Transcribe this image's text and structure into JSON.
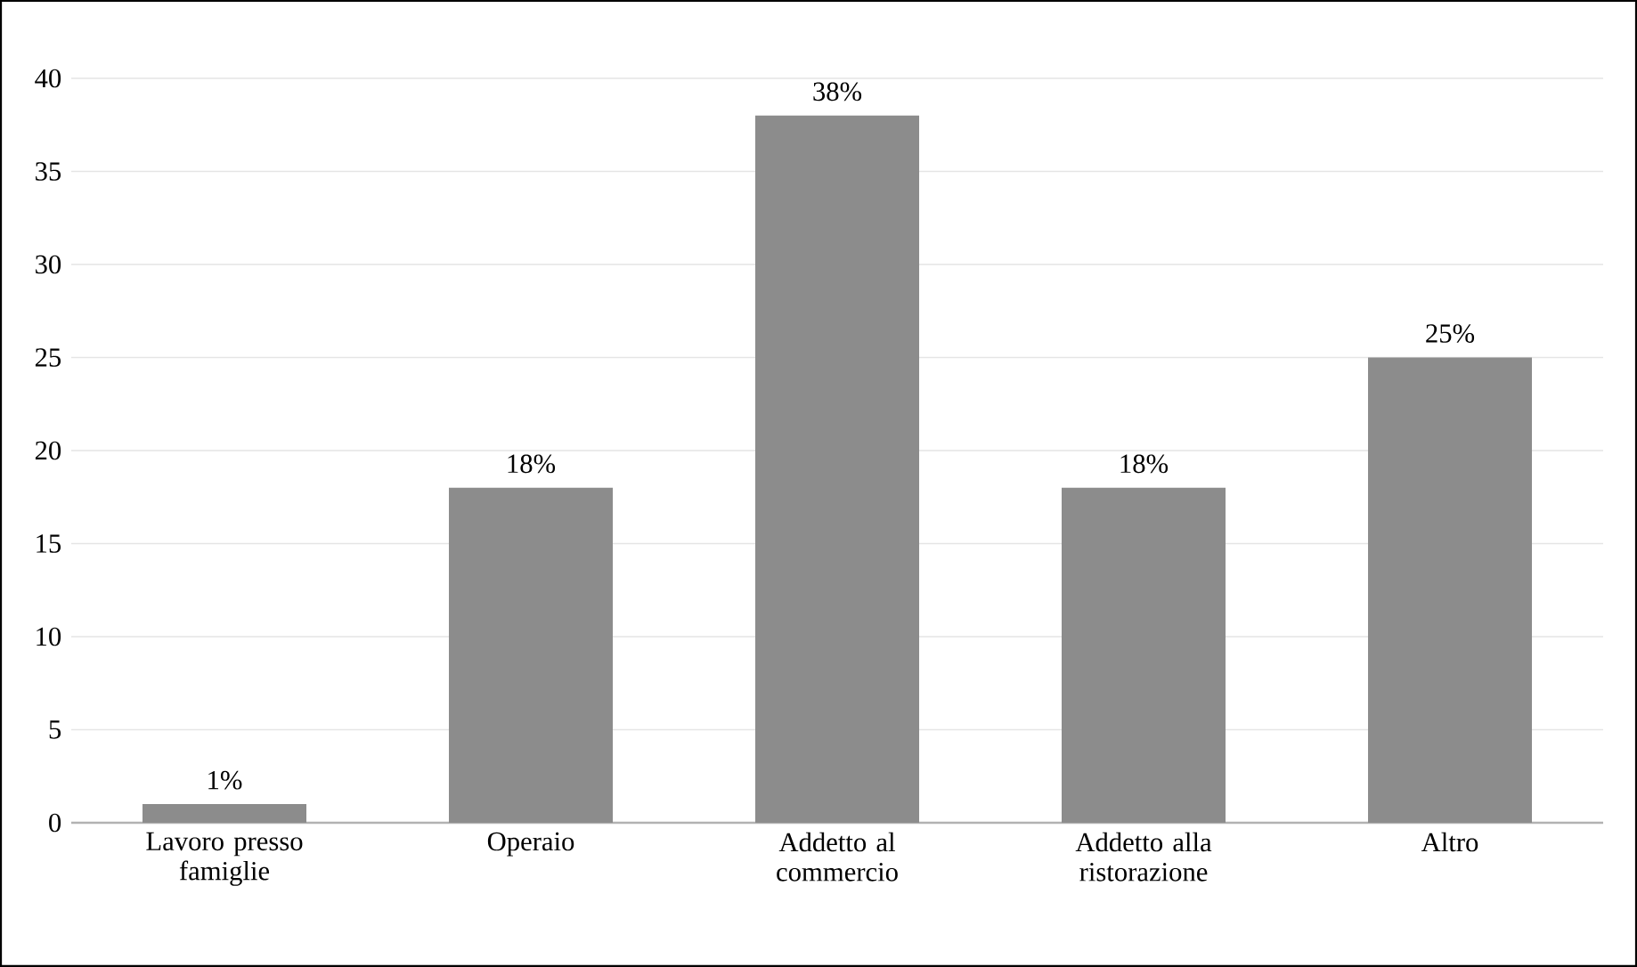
{
  "chart_data": {
    "type": "bar",
    "categories": [
      "Lavoro presso famiglie",
      "Operaio",
      "Addetto al commercio",
      "Addetto alla ristorazione",
      "Altro"
    ],
    "values": [
      1,
      18,
      38,
      18,
      25
    ],
    "value_labels": [
      "1%",
      "18%",
      "38%",
      "18%",
      "25%"
    ],
    "color": "#8c8c8c",
    "ylim": [
      0,
      40
    ],
    "yticks": [
      0,
      5,
      10,
      15,
      20,
      25,
      30,
      35,
      40
    ],
    "grid": "y"
  }
}
